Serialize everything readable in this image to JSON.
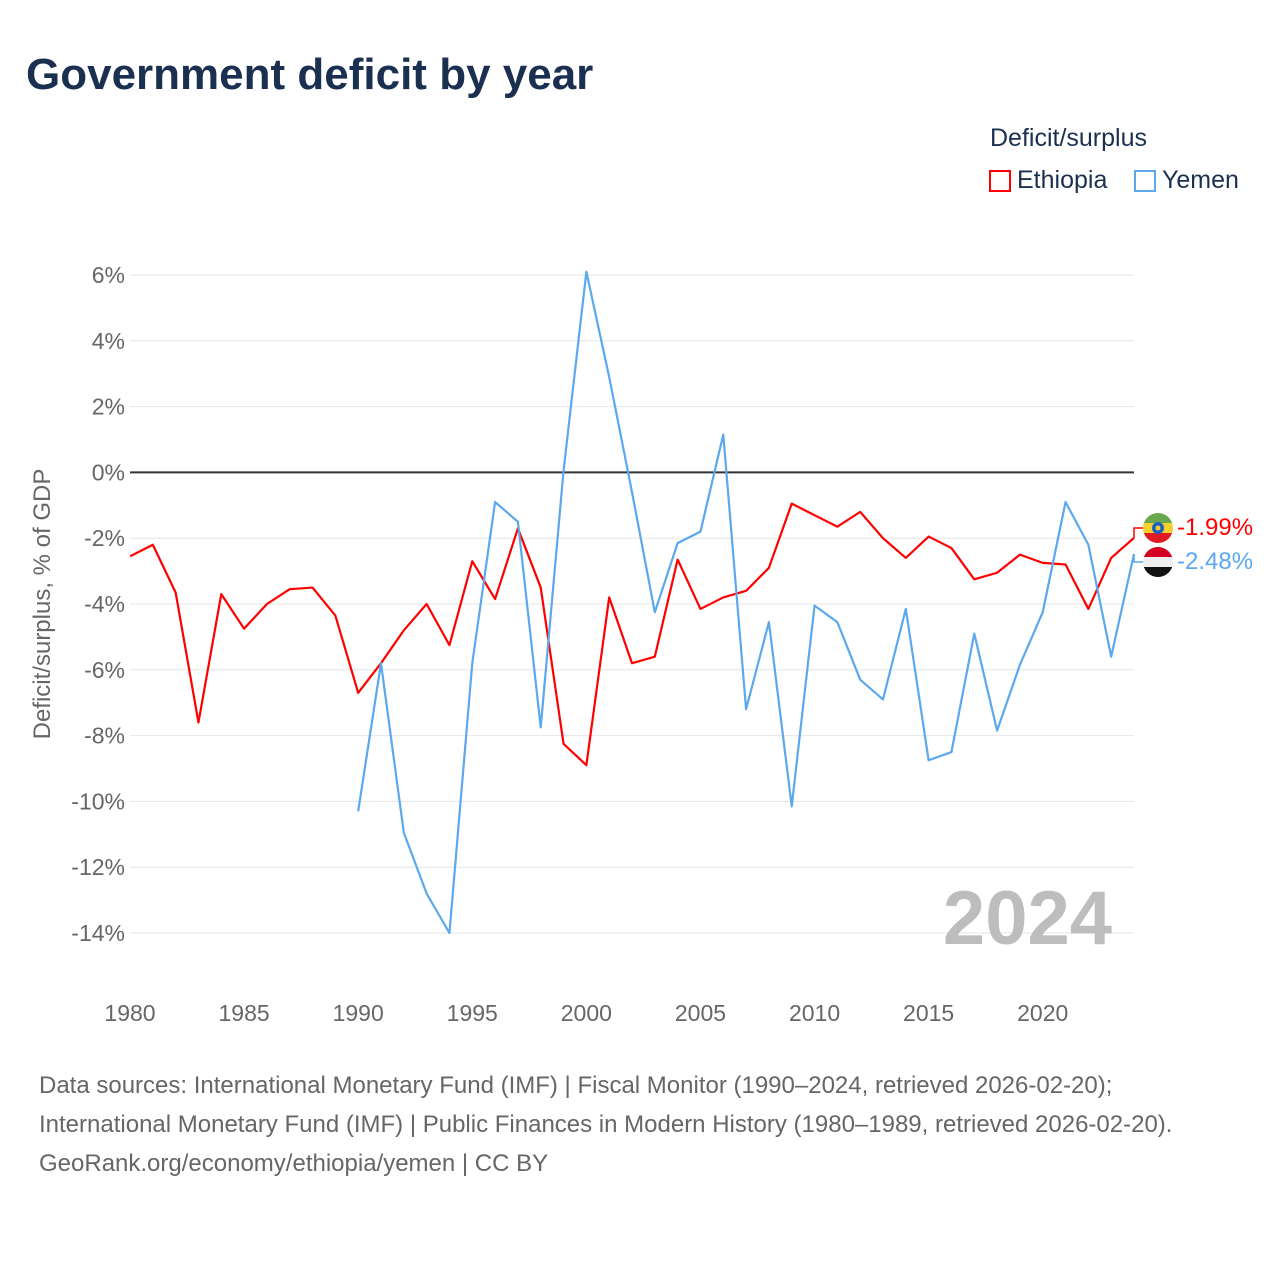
{
  "title": "Government deficit by year",
  "legend": {
    "title": "Deficit/surplus",
    "items": [
      {
        "label": "Ethiopia",
        "color": "#ff0000"
      },
      {
        "label": "Yemen",
        "color": "#5ba8ec"
      }
    ]
  },
  "year_label": "2024",
  "end_labels": {
    "ethiopia": "-1.99%",
    "yemen": "-2.48%"
  },
  "source": {
    "line1": "Data sources: International Monetary Fund (IMF) | Fiscal Monitor (1990–2024, retrieved 2026-02-20); International Monetary Fund (IMF) | Public Finances in Modern History (1980–1989, retrieved 2026-02-20).",
    "line2": "GeoRank.org/economy/ethiopia/yemen | CC BY"
  },
  "chart_data": {
    "type": "line",
    "title": "Government deficit by year",
    "xlabel": "",
    "ylabel": "Deficit/surplus, % of GDP",
    "xlim": [
      1980,
      2024
    ],
    "ylim": [
      -14,
      6
    ],
    "xticks": [
      1980,
      1985,
      1990,
      1995,
      2000,
      2005,
      2010,
      2015,
      2020
    ],
    "yticks": [
      6,
      4,
      2,
      0,
      -2,
      -4,
      -6,
      -8,
      -10,
      -12,
      -14
    ],
    "ytick_labels": [
      "6%",
      "4%",
      "2%",
      "0%",
      "-2%",
      "-4%",
      "-6%",
      "-8%",
      "-10%",
      "-12%",
      "-14%"
    ],
    "grid": true,
    "legend_position": "top-right",
    "series": [
      {
        "name": "Ethiopia",
        "color": "#ff0000",
        "x_start": 1980,
        "values": [
          -2.55,
          -2.2,
          -3.65,
          -7.6,
          -3.7,
          -4.75,
          -4.0,
          -3.55,
          -3.5,
          -4.35,
          -6.7,
          -5.8,
          -4.8,
          -4.0,
          -5.25,
          -2.7,
          -3.85,
          -1.7,
          -3.5,
          -8.25,
          -8.9,
          -3.8,
          -5.8,
          -5.6,
          -2.65,
          -4.15,
          -3.8,
          -3.6,
          -2.9,
          -0.95,
          -1.3,
          -1.65,
          -1.2,
          -2.0,
          -2.6,
          -1.95,
          -2.3,
          -3.25,
          -3.05,
          -2.5,
          -2.75,
          -2.8,
          -4.15,
          -2.6,
          -1.99
        ]
      },
      {
        "name": "Yemen",
        "color": "#5ba8ec",
        "x_start": 1990,
        "values": [
          -10.3,
          -5.8,
          -10.95,
          -12.8,
          -14.0,
          -5.8,
          -0.9,
          -1.5,
          -7.75,
          0.05,
          6.1,
          2.9,
          -0.6,
          -4.25,
          -2.15,
          -1.8,
          1.15,
          -7.2,
          -4.55,
          -10.15,
          -4.05,
          -4.55,
          -6.3,
          -6.9,
          -4.15,
          -8.75,
          -8.5,
          -4.9,
          -7.85,
          -5.85,
          -4.25,
          -0.9,
          -2.2,
          -5.6,
          -2.48
        ]
      }
    ]
  }
}
